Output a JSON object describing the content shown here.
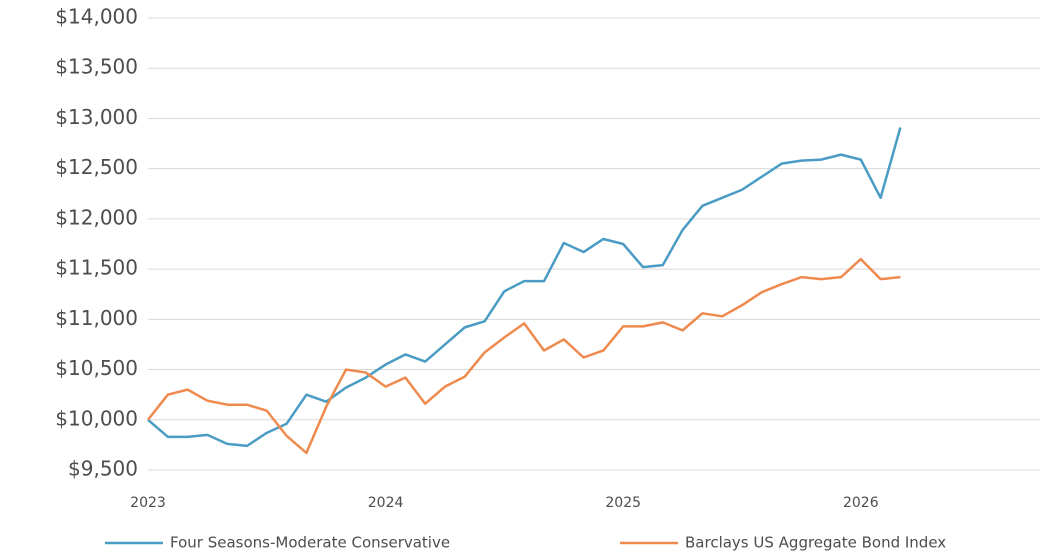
{
  "chart_data": {
    "type": "line",
    "categories": [
      "2023",
      null,
      null,
      null,
      null,
      null,
      null,
      null,
      null,
      null,
      null,
      null,
      "2024",
      null,
      null,
      null,
      null,
      null,
      null,
      null,
      null,
      null,
      null,
      null,
      "2025",
      null,
      null,
      null,
      null,
      null,
      null,
      null,
      null,
      null,
      null,
      null,
      "2026",
      null,
      null
    ],
    "series": [
      {
        "name": "Four Seasons-Moderate Conservative",
        "color": "#4a9cc4",
        "values": [
          10000,
          9830,
          9830,
          9850,
          9760,
          9740,
          9870,
          9960,
          10250,
          10180,
          10320,
          10420,
          10550,
          10650,
          10580,
          10750,
          10920,
          10980,
          11280,
          11380,
          11380,
          11760,
          11670,
          11800,
          11750,
          11520,
          11540,
          11890,
          12130,
          12210,
          12290,
          12420,
          12550,
          12580,
          12590,
          12640,
          12590,
          12210,
          12910
        ]
      },
      {
        "name": "Barclays US Aggregate Bond Index",
        "color": "#ef8a4f",
        "values": [
          10000,
          10250,
          10300,
          10190,
          10150,
          10150,
          10090,
          9840,
          9670,
          10130,
          10500,
          10470,
          10330,
          10420,
          10160,
          10330,
          10430,
          10670,
          10820,
          10960,
          10690,
          10800,
          10620,
          10690,
          10930,
          10930,
          10970,
          10890,
          11060,
          11030,
          11140,
          11270,
          11350,
          11420,
          11400,
          11420,
          11600,
          11400,
          11420
        ]
      }
    ],
    "ylim": [
      9500,
      14000
    ],
    "yticks": [
      {
        "value": 9500,
        "label": "$9,500"
      },
      {
        "value": 10000,
        "label": "$10,000"
      },
      {
        "value": 10500,
        "label": "$10,500"
      },
      {
        "value": 11000,
        "label": "$11,000"
      },
      {
        "value": 11500,
        "label": "$11,500"
      },
      {
        "value": 12000,
        "label": "$12,000"
      },
      {
        "value": 12500,
        "label": "$12,500"
      },
      {
        "value": 13000,
        "label": "$13,000"
      },
      {
        "value": 13500,
        "label": "$13,500"
      },
      {
        "value": 14000,
        "label": "$14,000"
      }
    ],
    "grid": true,
    "legend": "bottom"
  }
}
